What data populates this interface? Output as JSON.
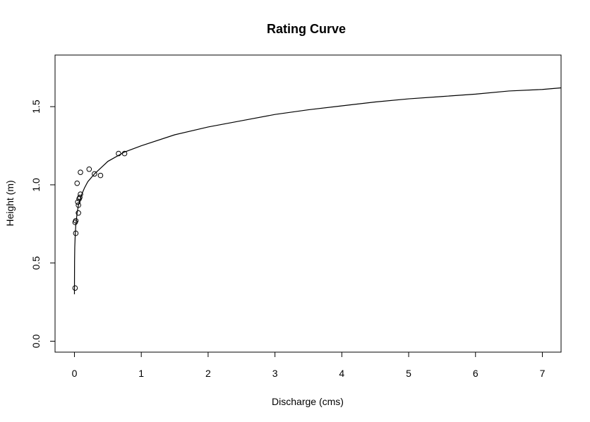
{
  "chart_data": {
    "type": "scatter",
    "title": "Rating Curve",
    "xlabel": "Discharge (cms)",
    "ylabel": "Height (m)",
    "xlim": [
      -0.29,
      7.28
    ],
    "ylim": [
      -0.07,
      1.83
    ],
    "x_ticks": [
      0,
      1,
      2,
      3,
      4,
      5,
      6,
      7
    ],
    "x_tick_labels": [
      "0",
      "1",
      "2",
      "3",
      "4",
      "5",
      "6",
      "7"
    ],
    "y_ticks": [
      0.0,
      0.5,
      1.0,
      1.5
    ],
    "y_tick_labels": [
      "0.0",
      "0.5",
      "1.0",
      "1.5"
    ],
    "grid": false,
    "legend": "none",
    "series": [
      {
        "kind": "points",
        "marker": "open-circle",
        "points": [
          {
            "x": 0.01,
            "y": 0.34
          },
          {
            "x": 0.01,
            "y": 0.76
          },
          {
            "x": 0.02,
            "y": 0.77
          },
          {
            "x": 0.02,
            "y": 0.69
          },
          {
            "x": 0.04,
            "y": 1.01
          },
          {
            "x": 0.05,
            "y": 0.89
          },
          {
            "x": 0.06,
            "y": 0.87
          },
          {
            "x": 0.06,
            "y": 0.82
          },
          {
            "x": 0.07,
            "y": 0.91
          },
          {
            "x": 0.08,
            "y": 0.92
          },
          {
            "x": 0.09,
            "y": 0.94
          },
          {
            "x": 0.09,
            "y": 1.08
          },
          {
            "x": 0.22,
            "y": 1.1
          },
          {
            "x": 0.3,
            "y": 1.07
          },
          {
            "x": 0.39,
            "y": 1.06
          },
          {
            "x": 0.66,
            "y": 1.2
          },
          {
            "x": 0.75,
            "y": 1.2
          }
        ]
      },
      {
        "kind": "fitted-curve",
        "points": [
          {
            "x": 0.0,
            "y": 0.3
          },
          {
            "x": 0.002,
            "y": 0.51
          },
          {
            "x": 0.005,
            "y": 0.6
          },
          {
            "x": 0.01,
            "y": 0.66
          },
          {
            "x": 0.02,
            "y": 0.74
          },
          {
            "x": 0.04,
            "y": 0.82
          },
          {
            "x": 0.06,
            "y": 0.87
          },
          {
            "x": 0.1,
            "y": 0.93
          },
          {
            "x": 0.15,
            "y": 0.98
          },
          {
            "x": 0.2,
            "y": 1.02
          },
          {
            "x": 0.3,
            "y": 1.07
          },
          {
            "x": 0.4,
            "y": 1.11
          },
          {
            "x": 0.5,
            "y": 1.15
          },
          {
            "x": 0.75,
            "y": 1.21
          },
          {
            "x": 1.0,
            "y": 1.25
          },
          {
            "x": 1.5,
            "y": 1.32
          },
          {
            "x": 2.0,
            "y": 1.37
          },
          {
            "x": 2.5,
            "y": 1.41
          },
          {
            "x": 3.0,
            "y": 1.45
          },
          {
            "x": 3.5,
            "y": 1.48
          },
          {
            "x": 4.0,
            "y": 1.505
          },
          {
            "x": 4.5,
            "y": 1.53
          },
          {
            "x": 5.0,
            "y": 1.55
          },
          {
            "x": 5.5,
            "y": 1.565
          },
          {
            "x": 6.0,
            "y": 1.58
          },
          {
            "x": 6.5,
            "y": 1.6
          },
          {
            "x": 7.0,
            "y": 1.61
          },
          {
            "x": 7.28,
            "y": 1.62
          }
        ]
      }
    ]
  }
}
